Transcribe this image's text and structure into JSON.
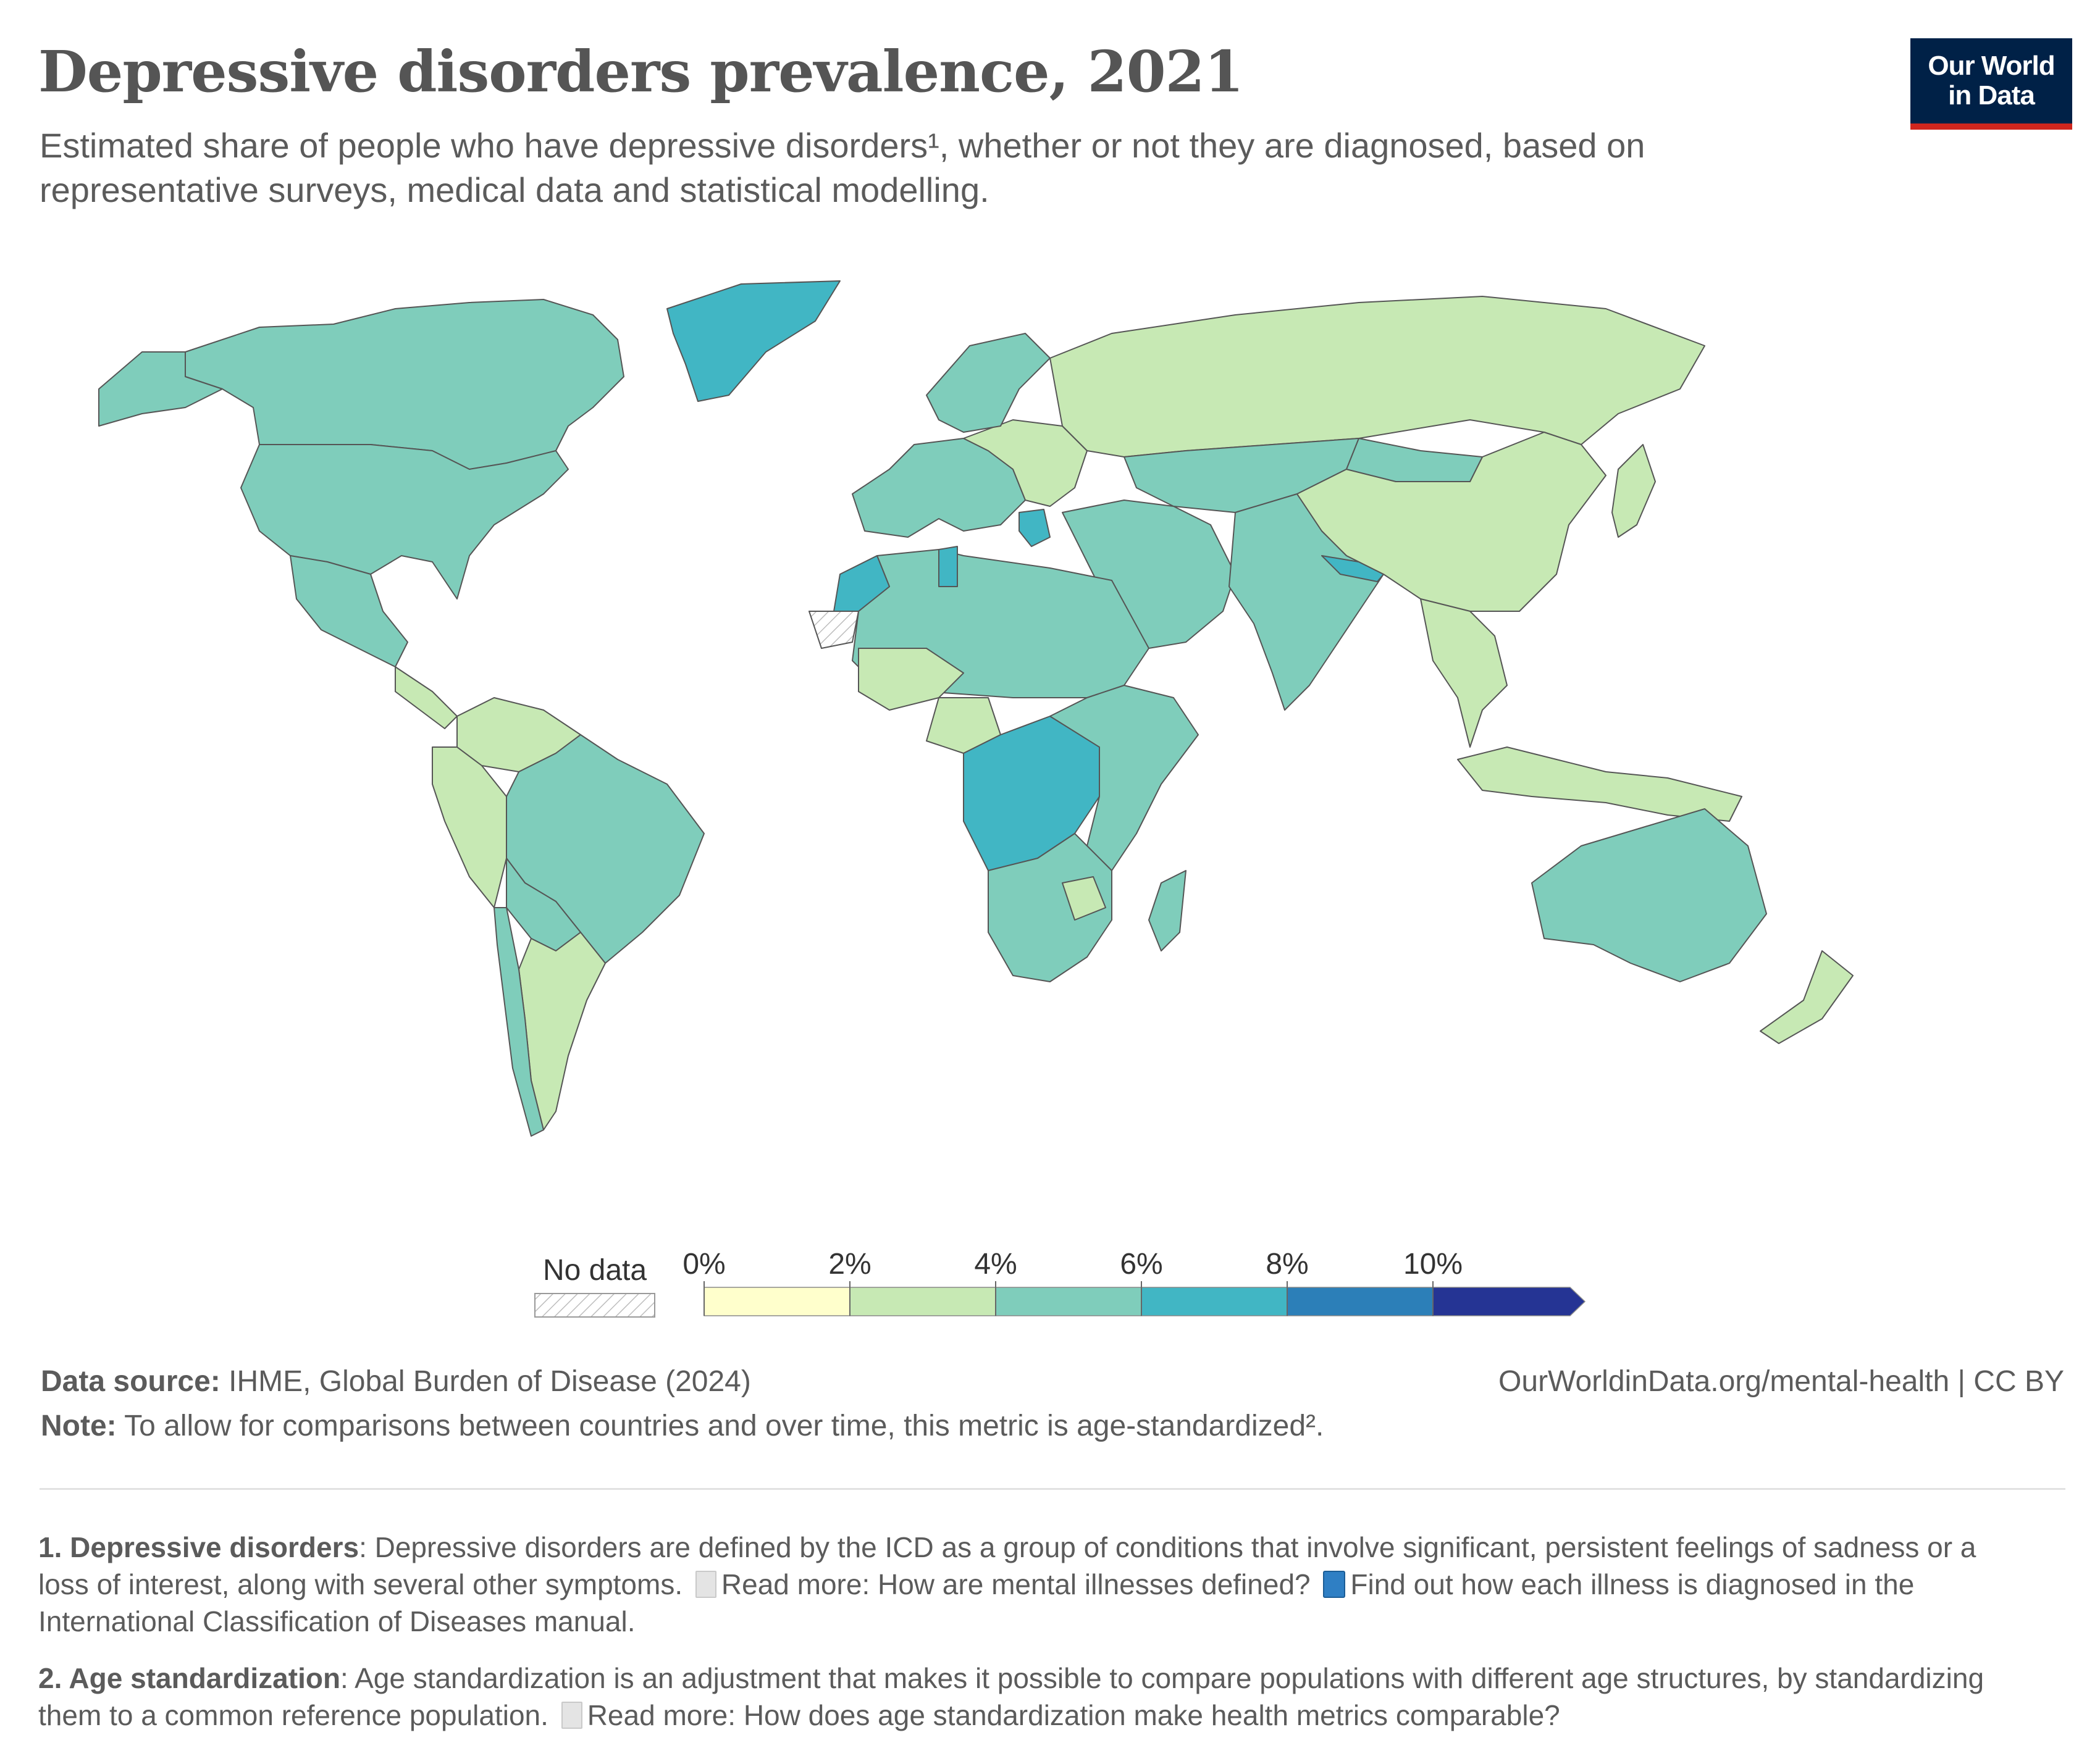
{
  "title": "Depressive disorders prevalence, 2021",
  "subtitle": "Estimated share of people who have depressive disorders¹, whether or not they are diagnosed, based on representative surveys, medical data and statistical modelling.",
  "logo": {
    "line1": "Our World",
    "line2": "in Data"
  },
  "colors": {
    "no_data": "hatched",
    "bins": [
      "#ffffcc",
      "#c7e9b4",
      "#7fcdbb",
      "#41b6c4",
      "#2c7fb8",
      "#253494"
    ],
    "border": "#555555"
  },
  "legend": {
    "no_data_label": "No data",
    "ticks": [
      "0%",
      "2%",
      "4%",
      "6%",
      "8%",
      "10%"
    ]
  },
  "footer": {
    "source_label": "Data source:",
    "source_text": "IHME, Global Burden of Disease (2024)",
    "url": "OurWorldinData.org/mental-health | CC BY",
    "note_label": "Note:",
    "note_text": "To allow for comparisons between countries and over time, this metric is age-standardized²."
  },
  "footnotes": {
    "f1_label": "1. Depressive disorders",
    "f1_text": ": Depressive disorders are defined by the ICD as a group of conditions that involve significant, persistent feelings of sadness or a loss of interest, along with several other symptoms.",
    "f1_link1": "Read more: How are mental illnesses defined?",
    "f1_link2": "Find out how each illness is diagnosed in the International Classification of Diseases manual.",
    "f2_label": "2. Age standardization",
    "f2_text": ": Age standardization is an adjustment that makes it possible to compare populations with different age structures, by standardizing them to a common reference population.",
    "f2_link": "Read more: How does age standardization make health metrics comparable?"
  },
  "regions": [
    {
      "name": "Canada",
      "bin": 2
    },
    {
      "name": "United States",
      "bin": 2
    },
    {
      "name": "Alaska",
      "bin": 2
    },
    {
      "name": "Greenland",
      "bin": 3
    },
    {
      "name": "Mexico",
      "bin": 2
    },
    {
      "name": "Central America",
      "bin": 1
    },
    {
      "name": "Colombia / Venezuela",
      "bin": 1
    },
    {
      "name": "Peru / Ecuador",
      "bin": 1
    },
    {
      "name": "Brazil",
      "bin": 2
    },
    {
      "name": "Bolivia / Paraguay",
      "bin": 2
    },
    {
      "name": "Argentina",
      "bin": 1
    },
    {
      "name": "Chile",
      "bin": 2
    },
    {
      "name": "Western Europe",
      "bin": 2
    },
    {
      "name": "Eastern Europe",
      "bin": 1
    },
    {
      "name": "Scandinavia",
      "bin": 2
    },
    {
      "name": "Greece",
      "bin": 3
    },
    {
      "name": "Russia",
      "bin": 1
    },
    {
      "name": "Central Asia",
      "bin": 2
    },
    {
      "name": "Middle East",
      "bin": 2
    },
    {
      "name": "India",
      "bin": 2
    },
    {
      "name": "Nepal",
      "bin": 3
    },
    {
      "name": "China",
      "bin": 1
    },
    {
      "name": "Mongolia",
      "bin": 2
    },
    {
      "name": "Japan",
      "bin": 1
    },
    {
      "name": "Southeast Asia",
      "bin": 1
    },
    {
      "name": "Indonesia",
      "bin": 1
    },
    {
      "name": "Australia",
      "bin": 2
    },
    {
      "name": "New Zealand",
      "bin": 1
    },
    {
      "name": "North Africa",
      "bin": 2
    },
    {
      "name": "Morocco",
      "bin": 3
    },
    {
      "name": "Tunisia",
      "bin": 3
    },
    {
      "name": "Mali / Niger",
      "bin": 1
    },
    {
      "name": "Nigeria",
      "bin": 1
    },
    {
      "name": "Central Africa",
      "bin": 3
    },
    {
      "name": "East Africa",
      "bin": 2
    },
    {
      "name": "Southern Africa",
      "bin": 2
    },
    {
      "name": "Zimbabwe",
      "bin": 1
    },
    {
      "name": "Madagascar",
      "bin": 2
    },
    {
      "name": "Western Sahara",
      "bin": -1
    }
  ]
}
